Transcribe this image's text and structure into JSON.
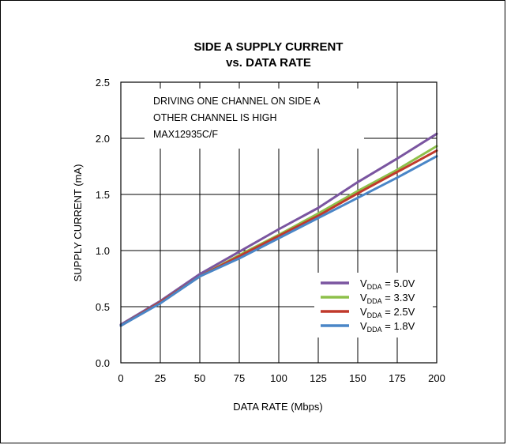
{
  "chart_data": {
    "type": "line",
    "title": [
      "SIDE A SUPPLY CURRENT",
      "vs. DATA RATE"
    ],
    "xlabel": "DATA RATE (Mbps)",
    "ylabel": "SUPPLY CURRENT (mA)",
    "xlim": [
      0,
      200
    ],
    "ylim": [
      0,
      2.5
    ],
    "x_ticks": [
      "0",
      "25",
      "50",
      "75",
      "100",
      "125",
      "150",
      "175",
      "200"
    ],
    "y_ticks": [
      "0.0",
      "0.5",
      "1.0",
      "1.5",
      "2.0",
      "2.5"
    ],
    "grid": true,
    "annotations": [
      "DRIVING ONE CHANNEL ON SIDE A",
      "OTHER CHANNEL IS HIGH",
      "MAX12935C/F"
    ],
    "legend_position": "bottom-right",
    "series": [
      {
        "name": "5.0V",
        "legend_prefix": "V",
        "legend_sub": "DDA",
        "legend_suffix": " = 5.0V",
        "color": "#7a55a0",
        "x": [
          0,
          25,
          50,
          75,
          100,
          125,
          150,
          175,
          200
        ],
        "y": [
          0.34,
          0.55,
          0.79,
          0.99,
          1.19,
          1.38,
          1.61,
          1.82,
          2.04
        ]
      },
      {
        "name": "3.3V",
        "legend_prefix": "V",
        "legend_sub": "DDA",
        "legend_suffix": " = 3.3V",
        "color": "#8dc04a",
        "x": [
          0,
          25,
          50,
          75,
          100,
          125,
          150,
          175,
          200
        ],
        "y": [
          0.33,
          0.54,
          0.77,
          0.96,
          1.14,
          1.33,
          1.53,
          1.72,
          1.93
        ]
      },
      {
        "name": "2.5V",
        "legend_prefix": "V",
        "legend_sub": "DDA",
        "legend_suffix": " = 2.5V",
        "color": "#c0392b",
        "x": [
          0,
          25,
          50,
          75,
          100,
          125,
          150,
          175,
          200
        ],
        "y": [
          0.33,
          0.54,
          0.77,
          0.95,
          1.13,
          1.31,
          1.51,
          1.7,
          1.89
        ]
      },
      {
        "name": "1.8V",
        "legend_prefix": "V",
        "legend_sub": "DDA",
        "legend_suffix": " = 1.8V",
        "color": "#4a86c7",
        "x": [
          0,
          25,
          50,
          75,
          100,
          125,
          150,
          175,
          200
        ],
        "y": [
          0.33,
          0.53,
          0.77,
          0.93,
          1.11,
          1.29,
          1.47,
          1.65,
          1.84
        ]
      }
    ]
  }
}
